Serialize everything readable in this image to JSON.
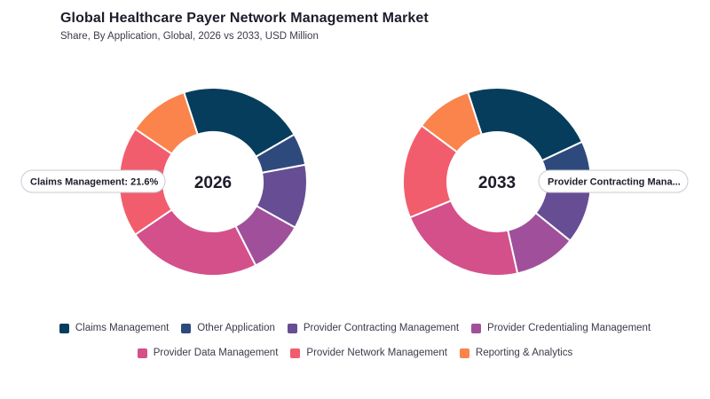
{
  "title": "Global Healthcare Payer Network Management Market",
  "subtitle": "Share, By Application, Global, 2026 vs 2033, USD Million",
  "colors": {
    "Claims Management": "#063d5c",
    "Other Application": "#2e4a7d",
    "Provider Contracting Management": "#664d94",
    "Provider Credentialing Management": "#a0509a",
    "Provider Data Management": "#d4508a",
    "Provider Network Management": "#f25d6e",
    "Reporting & Analytics": "#fa844b"
  },
  "chart_data": [
    {
      "type": "pie",
      "donut": true,
      "center_label": "2026",
      "categories": [
        "Claims Management",
        "Other Application",
        "Provider Contracting Management",
        "Provider Credentialing Management",
        "Provider Data Management",
        "Provider Network Management",
        "Reporting & Analytics"
      ],
      "values": [
        21.6,
        5.5,
        11.0,
        9.4,
        23.0,
        19.0,
        10.5
      ],
      "tooltip": "Claims Management: 21.6%"
    },
    {
      "type": "pie",
      "donut": true,
      "center_label": "2033",
      "categories": [
        "Claims Management",
        "Other Application",
        "Provider Contracting Management",
        "Provider Credentialing Management",
        "Provider Data Management",
        "Provider Network Management",
        "Reporting & Analytics"
      ],
      "values": [
        23.0,
        6.0,
        11.8,
        10.7,
        22.3,
        16.4,
        9.8
      ],
      "tooltip": "Provider Contracting Mana..."
    }
  ],
  "legend": [
    "Claims Management",
    "Other Application",
    "Provider Contracting Management",
    "Provider Credentialing Management",
    "Provider Data Management",
    "Provider Network Management",
    "Reporting & Analytics"
  ]
}
